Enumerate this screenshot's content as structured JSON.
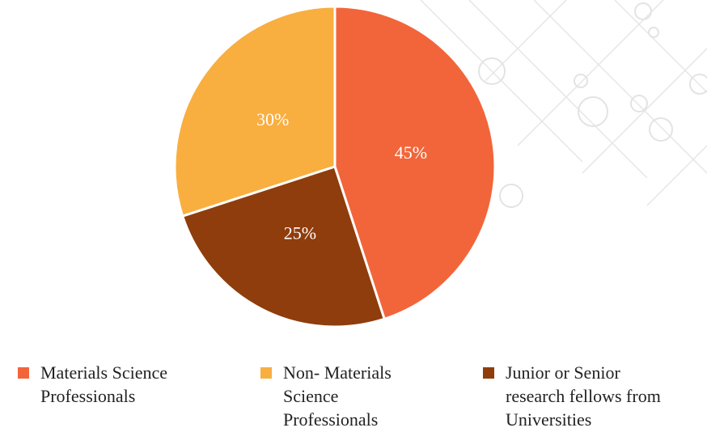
{
  "chart_data": {
    "type": "pie",
    "categories": [
      "Materials Science Professionals",
      "Non- Materials Science Professionals",
      "Junior or Senior research fellows from Universities"
    ],
    "values": [
      45,
      30,
      25
    ],
    "value_labels": [
      "45%",
      "30%",
      "25%"
    ],
    "colors": [
      "#f2653a",
      "#f9ae40",
      "#8f3d0c"
    ]
  }
}
